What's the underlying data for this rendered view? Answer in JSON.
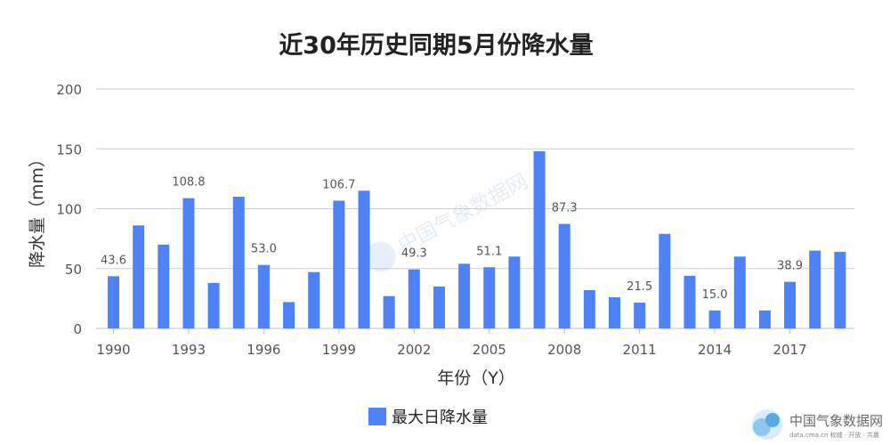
{
  "chart_data": {
    "type": "bar",
    "title": "近30年历史同期5月份降水量",
    "xlabel": "年份（Y）",
    "ylabel": "降水量（mm）",
    "ylim": [
      0,
      200
    ],
    "yticks": [
      0,
      50,
      100,
      150,
      200
    ],
    "grid": true,
    "legend_position": "bottom-center",
    "categories": [
      "1990",
      "1991",
      "1992",
      "1993",
      "1994",
      "1995",
      "1996",
      "1997",
      "1998",
      "1999",
      "2000",
      "2001",
      "2002",
      "2003",
      "2004",
      "2005",
      "2006",
      "2007",
      "2008",
      "2009",
      "2010",
      "2011",
      "2012",
      "2013",
      "2014",
      "2015",
      "2016",
      "2017",
      "2018",
      "2019"
    ],
    "xtick_labels": [
      "1990",
      "1993",
      "1996",
      "1999",
      "2002",
      "2005",
      "2008",
      "2011",
      "2014",
      "2017"
    ],
    "series": [
      {
        "name": "最大日降水量",
        "color": "#4f81f7",
        "values": [
          43.6,
          86,
          70,
          108.8,
          38,
          110,
          53.0,
          22,
          47,
          106.7,
          115,
          27,
          49.3,
          35,
          54,
          51.1,
          60,
          148,
          87.3,
          32,
          26,
          21.5,
          79,
          44,
          15.0,
          60,
          15,
          38.9,
          65,
          64
        ],
        "labeled_indices": [
          0,
          3,
          6,
          9,
          12,
          15,
          18,
          21,
          24,
          27
        ]
      }
    ]
  },
  "watermark": {
    "center_text": "中国气象数据网",
    "corner_name": "中国气象数据网",
    "corner_url": "data.cma.cn 权威 · 开放 · 共赢"
  }
}
